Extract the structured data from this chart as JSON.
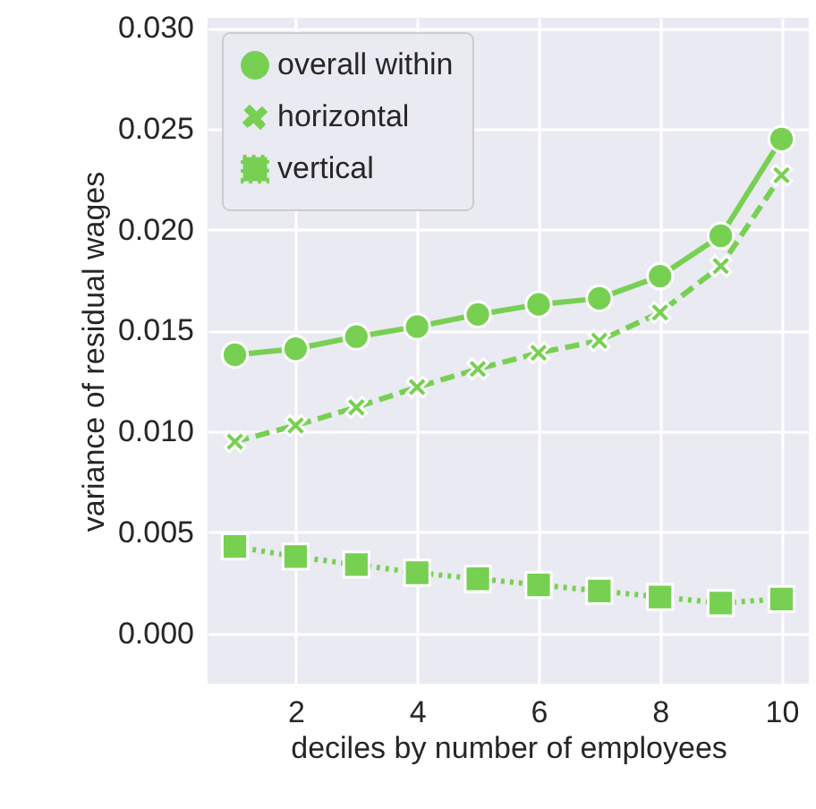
{
  "chart_data": {
    "type": "line",
    "xlabel": "deciles by number of employees",
    "ylabel": "variance of residual wages",
    "x": [
      1,
      2,
      3,
      4,
      5,
      6,
      7,
      8,
      9,
      10
    ],
    "series": [
      {
        "name": "overall within",
        "color": "#77d052",
        "line_style": "solid",
        "marker": "circle",
        "values": [
          0.0138,
          0.0141,
          0.0147,
          0.0152,
          0.0158,
          0.0163,
          0.0166,
          0.0177,
          0.0197,
          0.0245
        ]
      },
      {
        "name": "horizontal",
        "color": "#77d052",
        "line_style": "dashed",
        "marker": "cross",
        "values": [
          0.0095,
          0.0103,
          0.0112,
          0.0122,
          0.0131,
          0.0139,
          0.0145,
          0.0159,
          0.0182,
          0.0227
        ]
      },
      {
        "name": "vertical",
        "color": "#77d052",
        "line_style": "dotted",
        "marker": "square",
        "values": [
          0.0043,
          0.0038,
          0.0034,
          0.003,
          0.0027,
          0.0024,
          0.0021,
          0.0018,
          0.0015,
          0.0017
        ]
      }
    ],
    "xlim": [
      0.55,
      10.45
    ],
    "xticks": [
      2,
      4,
      6,
      8,
      10
    ],
    "ylim": [
      -0.0025,
      0.0305
    ],
    "yticks": [
      {
        "value": 0,
        "label": "0.000"
      },
      {
        "value": 0.005,
        "label": "0.005"
      },
      {
        "value": 0.01,
        "label": "0.010"
      },
      {
        "value": 0.015,
        "label": "0.015"
      },
      {
        "value": 0.02,
        "label": "0.020"
      },
      {
        "value": 0.025,
        "label": "0.025"
      },
      {
        "value": 0.03,
        "label": "0.030"
      }
    ],
    "grid": true,
    "legend": "top left"
  }
}
